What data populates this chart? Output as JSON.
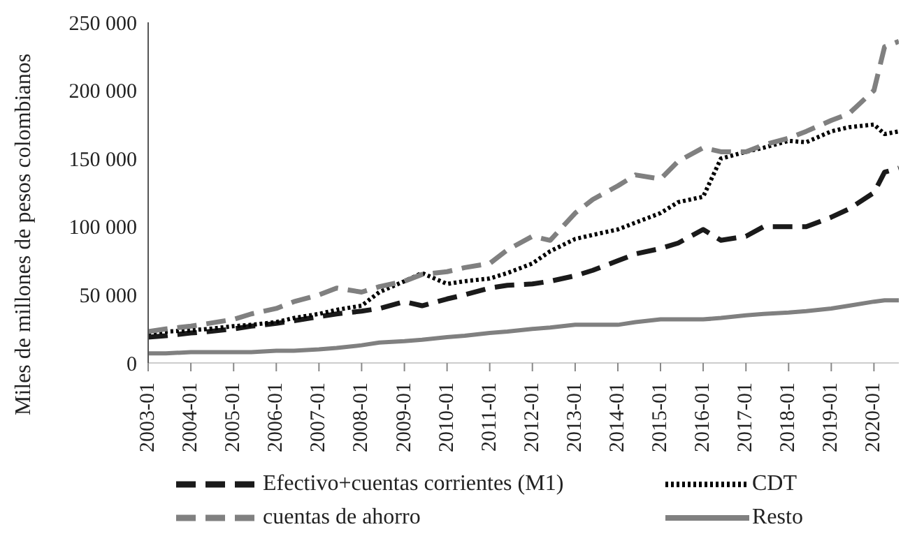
{
  "chart_data": {
    "type": "line",
    "ylabel": "Miles de millones de pesos colombianos",
    "x": [
      "2003-01",
      "2003-06",
      "2004-01",
      "2004-06",
      "2005-01",
      "2005-06",
      "2006-01",
      "2006-06",
      "2007-01",
      "2007-06",
      "2008-01",
      "2008-06",
      "2009-01",
      "2009-06",
      "2010-01",
      "2010-06",
      "2011-01",
      "2011-06",
      "2012-01",
      "2012-06",
      "2013-01",
      "2013-06",
      "2014-01",
      "2014-06",
      "2015-01",
      "2015-06",
      "2016-01",
      "2016-06",
      "2017-01",
      "2017-06",
      "2018-01",
      "2018-06",
      "2019-01",
      "2019-06",
      "2020-01",
      "2020-04",
      "2020-08"
    ],
    "series": [
      {
        "name": "Efectivo+cuentas corrientes (M1)",
        "color": "#1a1a1a",
        "line_style": "dashed",
        "values": [
          19000,
          20000,
          22000,
          23000,
          25000,
          27000,
          29000,
          31000,
          34000,
          36000,
          38000,
          40000,
          45000,
          42000,
          47000,
          50000,
          55000,
          57000,
          58000,
          60000,
          64000,
          68000,
          75000,
          80000,
          84000,
          88000,
          98000,
          90000,
          93000,
          100000,
          100000,
          100000,
          107000,
          113000,
          125000,
          140000,
          143000
        ]
      },
      {
        "name": "CDT",
        "color": "#000000",
        "line_style": "dotted",
        "values": [
          22000,
          23000,
          24000,
          25000,
          27000,
          28000,
          30000,
          33000,
          36000,
          39000,
          42000,
          52000,
          60000,
          66000,
          58000,
          60000,
          62000,
          66000,
          73000,
          82000,
          91000,
          94000,
          98000,
          103000,
          110000,
          118000,
          122000,
          150000,
          155000,
          158000,
          163000,
          162000,
          170000,
          173000,
          175000,
          168000,
          170000
        ]
      },
      {
        "name": "cuentas de ahorro",
        "color": "#808080",
        "line_style": "dashed",
        "values": [
          23000,
          25000,
          27000,
          29000,
          32000,
          36000,
          40000,
          45000,
          50000,
          55000,
          52000,
          56000,
          60000,
          65000,
          67000,
          70000,
          73000,
          83000,
          93000,
          90000,
          110000,
          120000,
          130000,
          138000,
          135000,
          148000,
          158000,
          155000,
          155000,
          160000,
          165000,
          170000,
          178000,
          183000,
          200000,
          232000,
          236000
        ]
      },
      {
        "name": "Resto",
        "color": "#808080",
        "line_style": "solid",
        "values": [
          7000,
          7000,
          8000,
          8000,
          8000,
          8000,
          9000,
          9000,
          10000,
          11000,
          13000,
          15000,
          16000,
          17000,
          19000,
          20000,
          22000,
          23000,
          25000,
          26000,
          28000,
          28000,
          28000,
          30000,
          32000,
          32000,
          32000,
          33000,
          35000,
          36000,
          37000,
          38000,
          40000,
          42000,
          45000,
          46000,
          46000
        ]
      }
    ],
    "xlim": [
      "2003-01",
      "2020-08"
    ],
    "xticks": [
      "2003-01",
      "2004-01",
      "2005-01",
      "2006-01",
      "2007-01",
      "2008-01",
      "2009-01",
      "2010-01",
      "2011-01",
      "2012-01",
      "2013-01",
      "2014-01",
      "2015-01",
      "2016-01",
      "2017-01",
      "2018-01",
      "2019-01",
      "2020-01"
    ],
    "ylim": [
      0,
      250000
    ],
    "yticks": [
      0,
      {
        "value": 50000,
        "label": "50 000"
      },
      {
        "value": 100000,
        "label": "100 000"
      },
      {
        "value": 150000,
        "label": "150 000"
      },
      {
        "value": 200000,
        "label": "200 000"
      },
      {
        "value": 250000,
        "label": "250 000"
      }
    ],
    "grid": false,
    "legend": "bottom",
    "marker": "none"
  }
}
